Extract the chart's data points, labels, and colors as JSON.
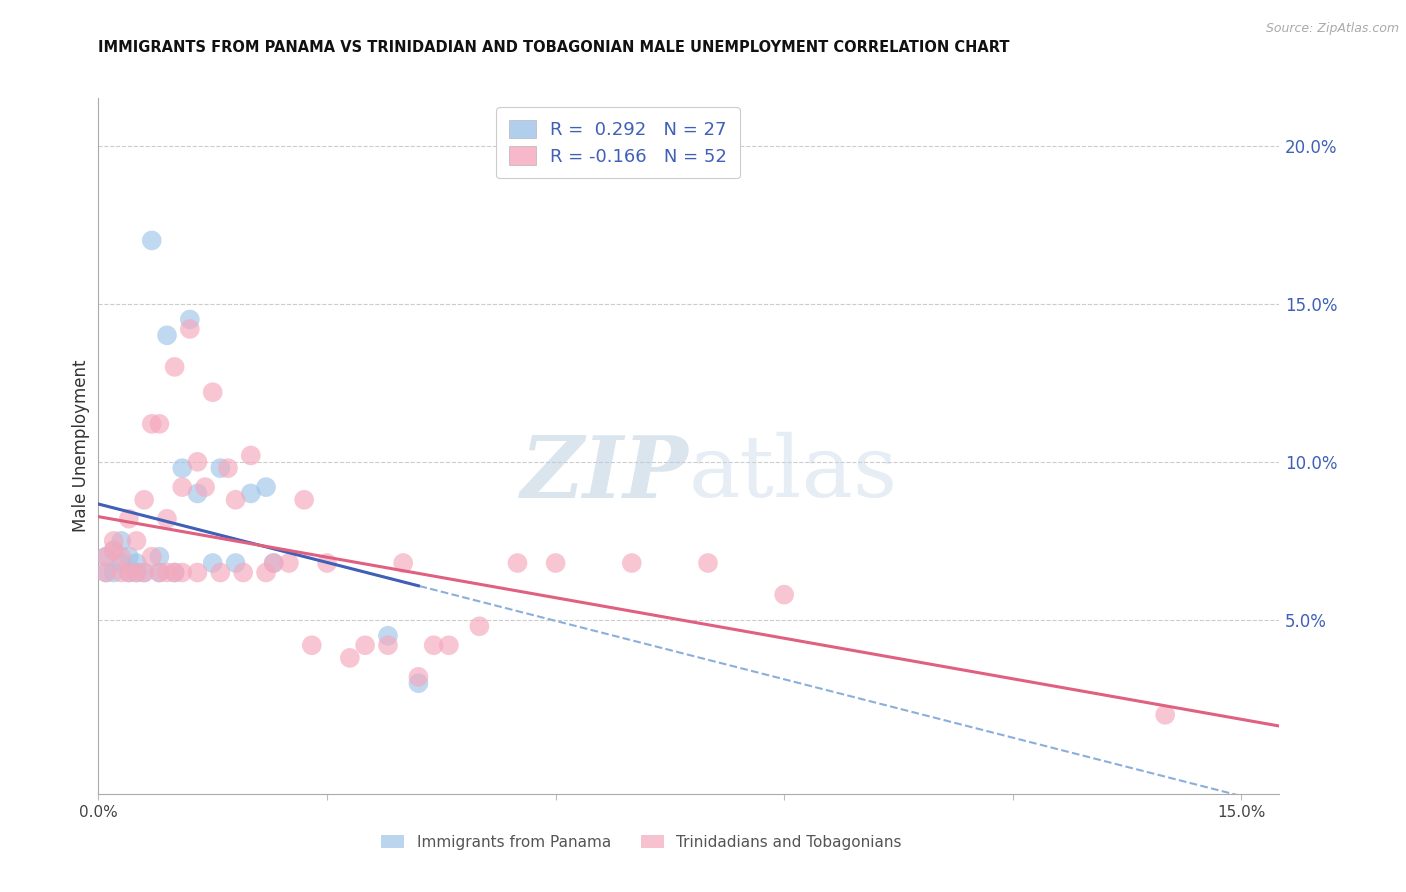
{
  "title": "IMMIGRANTS FROM PANAMA VS TRINIDADIAN AND TOBAGONIAN MALE UNEMPLOYMENT CORRELATION CHART",
  "source": "Source: ZipAtlas.com",
  "ylabel": "Male Unemployment",
  "xlim": [
    0.0,
    0.155
  ],
  "ylim": [
    -0.005,
    0.215
  ],
  "xticks": [
    0.0,
    0.03,
    0.06,
    0.09,
    0.12,
    0.15
  ],
  "xtick_labels": [
    "0.0%",
    "",
    "",
    "",
    "",
    "15.0%"
  ],
  "yticks_right": [
    0.05,
    0.1,
    0.15,
    0.2
  ],
  "ytick_labels_right": [
    "5.0%",
    "10.0%",
    "15.0%",
    "20.0%"
  ],
  "blue_label": "Immigrants from Panama",
  "pink_label": "Trinidadians and Tobagonians",
  "R_blue": "0.292",
  "N_blue": "27",
  "R_pink": "-0.166",
  "N_pink": "52",
  "blue_fill": "#9ec4e8",
  "pink_fill": "#f5a8bc",
  "blue_line_color": "#4060b8",
  "pink_line_color": "#e06080",
  "dashed_line_color": "#8ab0d8",
  "watermark_zip": "ZIP",
  "watermark_atlas": "atlas",
  "blue_points": [
    [
      0.001,
      0.07
    ],
    [
      0.001,
      0.065
    ],
    [
      0.002,
      0.072
    ],
    [
      0.002,
      0.065
    ],
    [
      0.003,
      0.075
    ],
    [
      0.003,
      0.068
    ],
    [
      0.004,
      0.07
    ],
    [
      0.004,
      0.065
    ],
    [
      0.005,
      0.068
    ],
    [
      0.005,
      0.065
    ],
    [
      0.006,
      0.065
    ],
    [
      0.007,
      0.17
    ],
    [
      0.008,
      0.07
    ],
    [
      0.008,
      0.065
    ],
    [
      0.009,
      0.14
    ],
    [
      0.01,
      0.065
    ],
    [
      0.011,
      0.098
    ],
    [
      0.012,
      0.145
    ],
    [
      0.013,
      0.09
    ],
    [
      0.015,
      0.068
    ],
    [
      0.016,
      0.098
    ],
    [
      0.018,
      0.068
    ],
    [
      0.02,
      0.09
    ],
    [
      0.022,
      0.092
    ],
    [
      0.023,
      0.068
    ],
    [
      0.038,
      0.045
    ],
    [
      0.042,
      0.03
    ]
  ],
  "pink_points": [
    [
      0.001,
      0.065
    ],
    [
      0.001,
      0.07
    ],
    [
      0.002,
      0.072
    ],
    [
      0.002,
      0.075
    ],
    [
      0.003,
      0.065
    ],
    [
      0.003,
      0.07
    ],
    [
      0.004,
      0.065
    ],
    [
      0.004,
      0.082
    ],
    [
      0.005,
      0.065
    ],
    [
      0.005,
      0.075
    ],
    [
      0.006,
      0.088
    ],
    [
      0.006,
      0.065
    ],
    [
      0.007,
      0.07
    ],
    [
      0.007,
      0.112
    ],
    [
      0.008,
      0.065
    ],
    [
      0.008,
      0.112
    ],
    [
      0.009,
      0.065
    ],
    [
      0.009,
      0.082
    ],
    [
      0.01,
      0.065
    ],
    [
      0.01,
      0.13
    ],
    [
      0.011,
      0.092
    ],
    [
      0.011,
      0.065
    ],
    [
      0.012,
      0.142
    ],
    [
      0.013,
      0.065
    ],
    [
      0.013,
      0.1
    ],
    [
      0.014,
      0.092
    ],
    [
      0.015,
      0.122
    ],
    [
      0.016,
      0.065
    ],
    [
      0.017,
      0.098
    ],
    [
      0.018,
      0.088
    ],
    [
      0.019,
      0.065
    ],
    [
      0.02,
      0.102
    ],
    [
      0.022,
      0.065
    ],
    [
      0.023,
      0.068
    ],
    [
      0.025,
      0.068
    ],
    [
      0.027,
      0.088
    ],
    [
      0.028,
      0.042
    ],
    [
      0.03,
      0.068
    ],
    [
      0.033,
      0.038
    ],
    [
      0.035,
      0.042
    ],
    [
      0.038,
      0.042
    ],
    [
      0.04,
      0.068
    ],
    [
      0.042,
      0.032
    ],
    [
      0.044,
      0.042
    ],
    [
      0.046,
      0.042
    ],
    [
      0.05,
      0.048
    ],
    [
      0.055,
      0.068
    ],
    [
      0.06,
      0.068
    ],
    [
      0.07,
      0.068
    ],
    [
      0.08,
      0.068
    ],
    [
      0.09,
      0.058
    ],
    [
      0.14,
      0.02
    ]
  ],
  "blue_line_x": [
    0.0,
    0.042
  ],
  "dashed_line_x": [
    0.0,
    0.155
  ],
  "pink_line_x": [
    0.0,
    0.155
  ]
}
